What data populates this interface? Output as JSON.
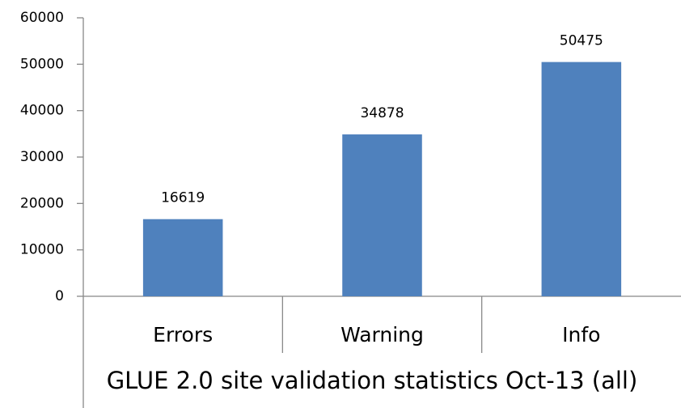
{
  "chart_data": {
    "type": "bar",
    "xlabel": "GLUE 2.0 site validation statistics Oct-13 (all)",
    "categories": [
      "Errors",
      "Warning",
      "Info"
    ],
    "values": [
      16619,
      34878,
      50475
    ],
    "color": "#4f81bd",
    "ylim": [
      0,
      60000
    ],
    "yticks": [
      0,
      10000,
      20000,
      30000,
      40000,
      50000,
      60000
    ],
    "grid": false
  }
}
